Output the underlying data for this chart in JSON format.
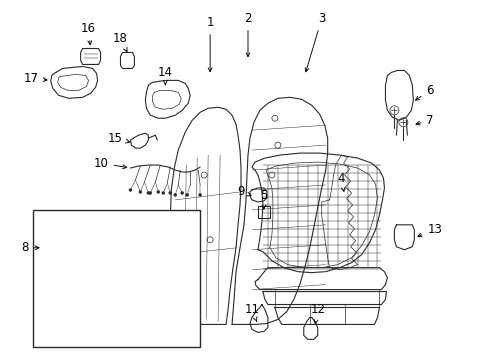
{
  "bg_color": "#ffffff",
  "line_color": "#2a2a2a",
  "label_color": "#000000",
  "label_fontsize": 8.5,
  "fig_width": 4.89,
  "fig_height": 3.6,
  "dpi": 100,
  "labels": {
    "1": [
      195,
      22,
      215,
      68
    ],
    "2": [
      240,
      18,
      255,
      45
    ],
    "3": [
      320,
      18,
      305,
      42
    ],
    "4": [
      323,
      175,
      338,
      185
    ],
    "5": [
      261,
      195,
      265,
      208
    ],
    "6": [
      425,
      88,
      408,
      103
    ],
    "7": [
      425,
      120,
      405,
      128
    ],
    "8": [
      48,
      248,
      68,
      248
    ],
    "9": [
      246,
      193,
      254,
      193
    ],
    "10": [
      103,
      163,
      130,
      170
    ],
    "11": [
      265,
      300,
      265,
      315
    ],
    "12": [
      315,
      298,
      315,
      315
    ],
    "13": [
      425,
      230,
      410,
      225
    ],
    "14": [
      162,
      72,
      162,
      88
    ],
    "15": [
      120,
      140,
      135,
      140
    ],
    "16": [
      82,
      28,
      90,
      45
    ],
    "17": [
      42,
      72,
      60,
      78
    ],
    "18": [
      117,
      35,
      128,
      52
    ]
  }
}
